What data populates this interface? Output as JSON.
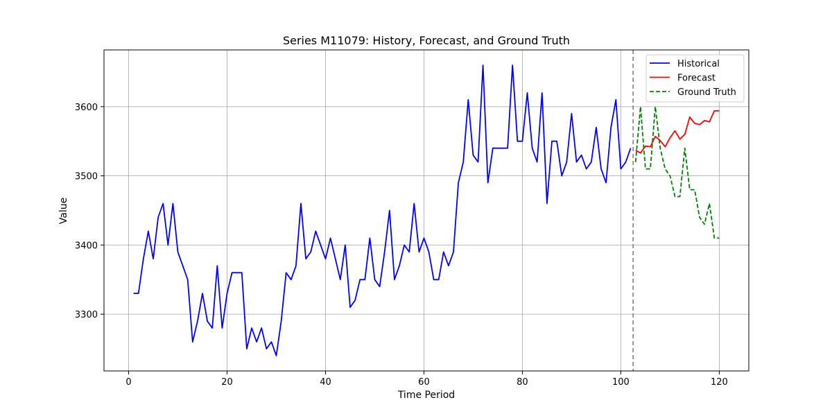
{
  "chart_data": {
    "type": "line",
    "title": "Series M11079: History, Forecast, and Ground Truth",
    "xlabel": "Time Period",
    "ylabel": "Value",
    "xlim": [
      -5,
      126
    ],
    "ylim": [
      3218,
      3682
    ],
    "x_ticks": [
      0,
      20,
      40,
      60,
      80,
      100,
      120
    ],
    "y_ticks": [
      3300,
      3400,
      3500,
      3600
    ],
    "grid": true,
    "legend_position": "top-right",
    "forecast_start_marker": 102.5,
    "series": [
      {
        "name": "Historical",
        "color": "#0000ff",
        "dash": "solid",
        "x_start": 1,
        "values": [
          3330,
          3330,
          3380,
          3420,
          3380,
          3440,
          3460,
          3400,
          3460,
          3390,
          3370,
          3350,
          3260,
          3290,
          3330,
          3290,
          3280,
          3370,
          3280,
          3330,
          3360,
          3360,
          3360,
          3250,
          3280,
          3260,
          3280,
          3250,
          3260,
          3240,
          3290,
          3360,
          3350,
          3370,
          3460,
          3380,
          3390,
          3420,
          3400,
          3380,
          3410,
          3380,
          3350,
          3400,
          3310,
          3320,
          3350,
          3350,
          3410,
          3350,
          3340,
          3390,
          3450,
          3350,
          3370,
          3400,
          3390,
          3460,
          3390,
          3410,
          3390,
          3350,
          3350,
          3390,
          3370,
          3390,
          3490,
          3520,
          3610,
          3530,
          3520,
          3660,
          3490,
          3540,
          3540,
          3540,
          3540,
          3660,
          3550,
          3550,
          3620,
          3540,
          3520,
          3620,
          3460,
          3550,
          3550,
          3500,
          3520,
          3590,
          3520,
          3530,
          3510,
          3520,
          3570,
          3510,
          3490,
          3570,
          3610,
          3510,
          3520,
          3540
        ]
      },
      {
        "name": "Forecast",
        "color": "#ff0000",
        "dash": "solid",
        "x_start": 103,
        "values": [
          3537,
          3533,
          3543,
          3542,
          3557,
          3551,
          3542,
          3555,
          3565,
          3553,
          3560,
          3585,
          3576,
          3574,
          3580,
          3578,
          3594,
          3594
        ]
      },
      {
        "name": "Ground Truth",
        "color": "#008000",
        "dash": "dashed",
        "x_start": 103,
        "values": [
          3520,
          3600,
          3510,
          3510,
          3600,
          3540,
          3510,
          3500,
          3470,
          3470,
          3540,
          3480,
          3480,
          3440,
          3430,
          3460,
          3410,
          3410
        ]
      }
    ]
  }
}
